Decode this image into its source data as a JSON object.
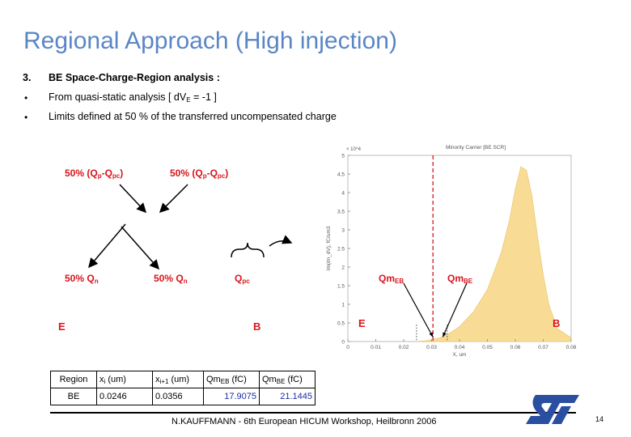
{
  "title": "Regional Approach (High injection)",
  "section": {
    "number": "3.",
    "heading": "BE Space-Charge-Region analysis :"
  },
  "bullets": [
    {
      "mark": "•",
      "text_a": "From quasi-static analysis [ dV",
      "sub": "E",
      "text_b": " = -1 ]"
    },
    {
      "mark": "•",
      "text_a": "Limits defined at 50 % of the transferred uncompensated charge",
      "sub": "",
      "text_b": ""
    }
  ],
  "diagram": {
    "top_left": {
      "a": "50% (Q",
      "s1": "p",
      "b": "-Q",
      "s2": "pc",
      "c": ")"
    },
    "top_right": {
      "a": "50% (Q",
      "s1": "p",
      "b": "-Q",
      "s2": "pc",
      "c": ")"
    },
    "mid_left": {
      "a": "50% Q",
      "s1": "n"
    },
    "mid_center": {
      "a": "50% Q",
      "s1": "n"
    },
    "mid_right": {
      "a": "Q",
      "s1": "pc"
    },
    "left_E": "E",
    "left_B": "B"
  },
  "chart_data": {
    "type": "area",
    "title": "Minority Carrier [BE SCR]",
    "xlabel": "X, um",
    "ylabel": "Im(dn_dV), fC/um3",
    "multiplier": "× 10^4",
    "xlim": [
      0,
      0.08
    ],
    "ylim": [
      0,
      5
    ],
    "xticks": [
      "0",
      "0.01",
      "0.02",
      "0.03",
      "0.04",
      "0.05",
      "0.06",
      "0.07",
      "0.08"
    ],
    "yticks": [
      "0",
      "0.5",
      "1",
      "1.5",
      "2",
      "2.5",
      "3",
      "3.5",
      "4",
      "4.5",
      "5"
    ],
    "fill_color": "#f8dc95",
    "x": [
      0.024,
      0.028,
      0.03,
      0.033,
      0.036,
      0.04,
      0.045,
      0.05,
      0.055,
      0.058,
      0.06,
      0.062,
      0.064,
      0.066,
      0.068,
      0.07,
      0.072,
      0.075,
      0.08
    ],
    "y": [
      0,
      0.02,
      0.05,
      0.1,
      0.2,
      0.4,
      0.8,
      1.4,
      2.4,
      3.3,
      4.1,
      4.7,
      4.6,
      3.9,
      2.8,
      1.8,
      1.0,
      0.35,
      0.1
    ],
    "markers": [
      {
        "x": 0.0246,
        "style": "dotted"
      },
      {
        "x": 0.0305,
        "style": "dashed-red"
      },
      {
        "x": 0.0356,
        "style": "dotted"
      }
    ],
    "annotations": [
      {
        "label": "Qm",
        "sub": "EB"
      },
      {
        "label": "Qm",
        "sub": "BE"
      },
      {
        "label": "E"
      },
      {
        "label": "B"
      }
    ]
  },
  "table": {
    "headers": [
      {
        "t": "Region",
        "s": ""
      },
      {
        "t": "x",
        "s": "i",
        "u": " (um)"
      },
      {
        "t": "x",
        "s": "i+1",
        "u": " (um)"
      },
      {
        "t": "Qm",
        "s": "EB",
        "u": " (fC)"
      },
      {
        "t": "Qm",
        "s": "BE",
        "u": " (fC)"
      }
    ],
    "row": [
      "BE",
      "0.0246",
      "0.0356",
      "17.9075",
      "21.1445"
    ]
  },
  "footer": "N.KAUFFMANN - 6th European HICUM Workshop, Heilbronn 2006",
  "page_number": "14",
  "logo": "ST"
}
